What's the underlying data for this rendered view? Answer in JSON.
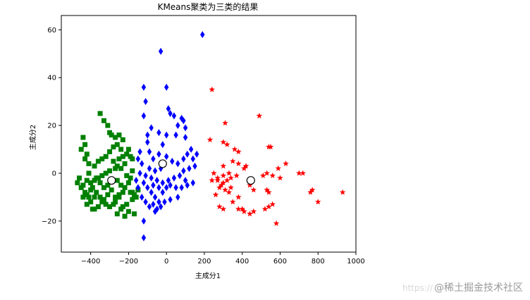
{
  "chart_data": {
    "type": "scatter",
    "title": "KMeans聚类为三类的结果",
    "xlabel": "主成分1",
    "ylabel": "主成分2",
    "xlim": [
      -555,
      1000
    ],
    "ylim": [
      -33,
      66
    ],
    "xticks": [
      -400,
      -200,
      0,
      200,
      400,
      600,
      800,
      1000
    ],
    "yticks": [
      -20,
      0,
      20,
      40,
      60
    ],
    "grid": false,
    "legend": "none",
    "series": [
      {
        "marker": "square",
        "color": "#008000",
        "points": [
          [
            -440,
            15
          ],
          [
            -430,
            12
          ],
          [
            -450,
            10
          ],
          [
            -420,
            8
          ],
          [
            -430,
            6
          ],
          [
            -410,
            4
          ],
          [
            -350,
            25
          ],
          [
            -330,
            22
          ],
          [
            -310,
            20
          ],
          [
            -300,
            17
          ],
          [
            -290,
            16
          ],
          [
            -270,
            15
          ],
          [
            -250,
            16
          ],
          [
            -230,
            14
          ],
          [
            -200,
            10
          ],
          [
            -190,
            7
          ],
          [
            -210,
            8
          ],
          [
            -180,
            6
          ],
          [
            -220,
            4
          ],
          [
            -240,
            2
          ],
          [
            -260,
            3
          ],
          [
            -280,
            5
          ],
          [
            -300,
            1
          ],
          [
            -320,
            0
          ],
          [
            -340,
            -1
          ],
          [
            -360,
            -2
          ],
          [
            -380,
            -3
          ],
          [
            -400,
            -4
          ],
          [
            -420,
            -3
          ],
          [
            -440,
            -5
          ],
          [
            -460,
            -2
          ],
          [
            -470,
            -4
          ],
          [
            -450,
            -6
          ],
          [
            -430,
            -8
          ],
          [
            -410,
            -10
          ],
          [
            -390,
            -6
          ],
          [
            -370,
            -8
          ],
          [
            -350,
            -10
          ],
          [
            -330,
            -11
          ],
          [
            -310,
            -9
          ],
          [
            -290,
            -7
          ],
          [
            -270,
            -12
          ],
          [
            -250,
            -10
          ],
          [
            -230,
            -14
          ],
          [
            -210,
            -13
          ],
          [
            -190,
            -8
          ],
          [
            -180,
            -11
          ],
          [
            -170,
            -17
          ],
          [
            -200,
            -16
          ],
          [
            -220,
            -18
          ],
          [
            -240,
            -15
          ],
          [
            -260,
            -17
          ],
          [
            -280,
            -13
          ],
          [
            -300,
            -14
          ],
          [
            -320,
            -13
          ],
          [
            -340,
            -12
          ],
          [
            -360,
            -14
          ],
          [
            -380,
            -15
          ],
          [
            -400,
            -12
          ],
          [
            -420,
            -13
          ],
          [
            -390,
            -15
          ],
          [
            -410,
            0
          ],
          [
            -380,
            3
          ],
          [
            -360,
            5
          ],
          [
            -340,
            6
          ],
          [
            -320,
            7
          ],
          [
            -300,
            9
          ],
          [
            -280,
            11
          ],
          [
            -260,
            12
          ],
          [
            -240,
            10
          ],
          [
            -230,
            7
          ],
          [
            -250,
            6
          ],
          [
            -270,
            2
          ],
          [
            -290,
            -3
          ],
          [
            -310,
            -5
          ],
          [
            -330,
            -6
          ],
          [
            -350,
            -4
          ],
          [
            -370,
            -2
          ],
          [
            -260,
            -3
          ],
          [
            -240,
            -5
          ],
          [
            -220,
            -6
          ],
          [
            -200,
            -4
          ],
          [
            -190,
            -2
          ],
          [
            -180,
            1
          ],
          [
            -210,
            -1
          ],
          [
            -230,
            -8
          ],
          [
            -250,
            -9
          ],
          [
            -270,
            -10
          ],
          [
            -180,
            -8
          ],
          [
            -170,
            -9
          ],
          [
            -160,
            -10
          ],
          [
            -150,
            -7
          ],
          [
            -420,
            -9
          ],
          [
            -440,
            -10
          ],
          [
            -400,
            -7
          ],
          [
            -380,
            -10
          ]
        ]
      },
      {
        "marker": "diamond",
        "color": "#0000ff",
        "points": [
          [
            190,
            58
          ],
          [
            -30,
            51
          ],
          [
            -120,
            36
          ],
          [
            0,
            36
          ],
          [
            -110,
            30
          ],
          [
            10,
            27
          ],
          [
            20,
            25
          ],
          [
            40,
            24
          ],
          [
            60,
            20
          ],
          [
            80,
            23
          ],
          [
            90,
            22
          ],
          [
            100,
            19
          ],
          [
            -120,
            24
          ],
          [
            -80,
            19
          ],
          [
            -40,
            17
          ],
          [
            0,
            16
          ],
          [
            50,
            16
          ],
          [
            100,
            15
          ],
          [
            -100,
            13
          ],
          [
            -140,
            9
          ],
          [
            -150,
            6
          ],
          [
            -130,
            4
          ],
          [
            -90,
            9
          ],
          [
            -70,
            6
          ],
          [
            -40,
            8
          ],
          [
            0,
            7
          ],
          [
            30,
            5
          ],
          [
            60,
            4
          ],
          [
            90,
            6
          ],
          [
            110,
            8
          ],
          [
            130,
            10
          ],
          [
            140,
            6
          ],
          [
            150,
            3
          ],
          [
            120,
            2
          ],
          [
            90,
            1
          ],
          [
            70,
            -1
          ],
          [
            40,
            -2
          ],
          [
            10,
            -3
          ],
          [
            -20,
            -4
          ],
          [
            -50,
            -3
          ],
          [
            -80,
            -2
          ],
          [
            -110,
            -1
          ],
          [
            -140,
            0
          ],
          [
            -120,
            -4
          ],
          [
            -100,
            -6
          ],
          [
            -80,
            -8
          ],
          [
            -60,
            -10
          ],
          [
            -40,
            -12
          ],
          [
            -20,
            -8
          ],
          [
            0,
            -6
          ],
          [
            20,
            -5
          ],
          [
            50,
            -6
          ],
          [
            80,
            -6
          ],
          [
            110,
            -5
          ],
          [
            140,
            -4
          ],
          [
            -130,
            -10
          ],
          [
            -110,
            -12
          ],
          [
            -90,
            -14
          ],
          [
            -70,
            -13
          ],
          [
            -50,
            -15
          ],
          [
            -30,
            -14
          ],
          [
            -10,
            -12
          ],
          [
            20,
            -11
          ],
          [
            -120,
            -20
          ],
          [
            -120,
            -27
          ],
          [
            -60,
            -16
          ],
          [
            -40,
            -6
          ],
          [
            -90,
            2
          ],
          [
            -60,
            1
          ],
          [
            -30,
            2
          ],
          [
            160,
            8
          ],
          [
            100,
            -3
          ],
          [
            -150,
            -6
          ],
          [
            -160,
            -3
          ],
          [
            -70,
            -5
          ],
          [
            60,
            -10
          ],
          [
            -100,
            16
          ],
          [
            -20,
            12
          ]
        ]
      },
      {
        "marker": "star",
        "color": "#ff0000",
        "points": [
          [
            240,
            35
          ],
          [
            490,
            24
          ],
          [
            310,
            21
          ],
          [
            230,
            14
          ],
          [
            300,
            13
          ],
          [
            320,
            12
          ],
          [
            360,
            10
          ],
          [
            380,
            9
          ],
          [
            540,
            11
          ],
          [
            550,
            11
          ],
          [
            630,
            4
          ],
          [
            700,
            0
          ],
          [
            720,
            0
          ],
          [
            760,
            -8
          ],
          [
            770,
            -7
          ],
          [
            930,
            -8
          ],
          [
            800,
            -12
          ],
          [
            420,
            3
          ],
          [
            510,
            -1
          ],
          [
            530,
            0
          ],
          [
            560,
            -1
          ],
          [
            590,
            2
          ],
          [
            600,
            -2
          ],
          [
            530,
            -7
          ],
          [
            540,
            -8
          ],
          [
            560,
            -13
          ],
          [
            540,
            -14
          ],
          [
            520,
            -15
          ],
          [
            580,
            -21
          ],
          [
            400,
            -15
          ],
          [
            410,
            -16
          ],
          [
            440,
            -17
          ],
          [
            380,
            -15
          ],
          [
            350,
            -12
          ],
          [
            300,
            -15
          ],
          [
            280,
            -14
          ],
          [
            260,
            -9
          ],
          [
            280,
            -6
          ],
          [
            300,
            -4
          ],
          [
            320,
            -3
          ],
          [
            340,
            -2
          ],
          [
            370,
            -1
          ],
          [
            340,
            -6
          ],
          [
            330,
            -8
          ],
          [
            310,
            -7
          ],
          [
            290,
            -5
          ],
          [
            270,
            -3
          ],
          [
            300,
            -1
          ],
          [
            330,
            0
          ],
          [
            250,
            0
          ],
          [
            240,
            -3
          ],
          [
            270,
            -2
          ],
          [
            300,
            3
          ],
          [
            350,
            5
          ],
          [
            380,
            4
          ],
          [
            410,
            2
          ],
          [
            460,
            -7
          ],
          [
            440,
            -5
          ],
          [
            380,
            -10
          ],
          [
            460,
            -16
          ]
        ]
      }
    ],
    "centroids": {
      "marker": "circle",
      "color": "#000000",
      "points": [
        [
          -290,
          -3
        ],
        [
          -20,
          4
        ],
        [
          445,
          -3
        ]
      ]
    }
  },
  "watermark": {
    "url_text": "https://",
    "text": "@稀土掘金技术社区"
  }
}
